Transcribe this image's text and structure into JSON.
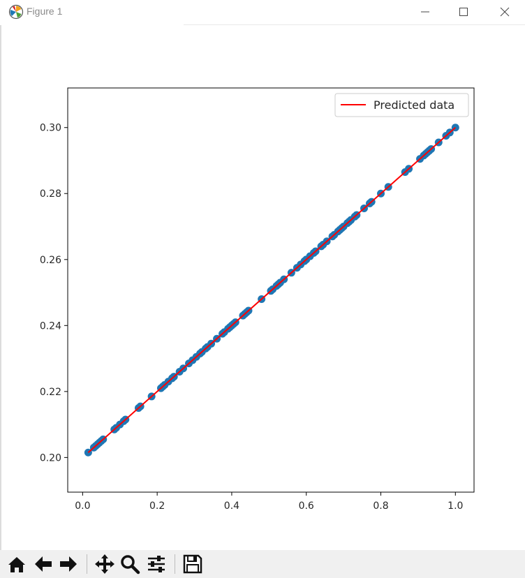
{
  "window": {
    "title": "Figure 1",
    "app_icon": "matplotlib-icon",
    "controls": [
      "minimize-icon",
      "maximize-icon",
      "close-icon"
    ]
  },
  "toolbar": {
    "buttons": [
      "home-icon",
      "back-arrow-icon",
      "forward-arrow-icon",
      "pan-icon",
      "zoom-icon",
      "subplots-config-icon",
      "save-icon"
    ]
  },
  "chart_data": {
    "type": "scatter",
    "title": "",
    "xlabel": "",
    "ylabel": "",
    "xlim": [
      -0.04,
      1.05
    ],
    "ylim": [
      0.1895,
      0.312
    ],
    "x_ticks": [
      0.0,
      0.2,
      0.4,
      0.6,
      0.8,
      1.0
    ],
    "x_tick_labels": [
      "0.0",
      "0.2",
      "0.4",
      "0.6",
      "0.8",
      "1.0"
    ],
    "y_ticks": [
      0.2,
      0.22,
      0.24,
      0.26,
      0.28,
      0.3
    ],
    "y_tick_labels": [
      "0.20",
      "0.22",
      "0.24",
      "0.26",
      "0.28",
      "0.30"
    ],
    "grid": false,
    "legend": {
      "position": "top-right",
      "entries": [
        "Predicted data"
      ]
    },
    "series": [
      {
        "kind": "scatter",
        "color": "#1f77b4",
        "x": [
          0.015,
          0.03,
          0.035,
          0.04,
          0.045,
          0.05,
          0.055,
          0.085,
          0.09,
          0.1,
          0.11,
          0.115,
          0.15,
          0.155,
          0.185,
          0.21,
          0.215,
          0.22,
          0.23,
          0.24,
          0.245,
          0.26,
          0.27,
          0.285,
          0.295,
          0.305,
          0.315,
          0.32,
          0.33,
          0.335,
          0.345,
          0.36,
          0.375,
          0.38,
          0.39,
          0.395,
          0.4,
          0.405,
          0.41,
          0.43,
          0.435,
          0.44,
          0.445,
          0.48,
          0.505,
          0.51,
          0.52,
          0.525,
          0.53,
          0.54,
          0.56,
          0.575,
          0.585,
          0.595,
          0.6,
          0.61,
          0.62,
          0.625,
          0.64,
          0.645,
          0.655,
          0.67,
          0.675,
          0.685,
          0.69,
          0.695,
          0.7,
          0.71,
          0.715,
          0.72,
          0.73,
          0.735,
          0.755,
          0.77,
          0.775,
          0.8,
          0.82,
          0.865,
          0.875,
          0.905,
          0.915,
          0.92,
          0.925,
          0.93,
          0.935,
          0.955,
          0.975,
          0.985,
          1.0
        ],
        "y": [
          0.2015,
          0.203,
          0.2035,
          0.204,
          0.2045,
          0.205,
          0.2055,
          0.2085,
          0.209,
          0.21,
          0.211,
          0.2115,
          0.215,
          0.2155,
          0.2185,
          0.221,
          0.2215,
          0.222,
          0.223,
          0.224,
          0.2245,
          0.226,
          0.227,
          0.2285,
          0.2295,
          0.2305,
          0.2315,
          0.232,
          0.233,
          0.2335,
          0.2345,
          0.236,
          0.2375,
          0.238,
          0.239,
          0.2395,
          0.24,
          0.2405,
          0.241,
          0.243,
          0.2435,
          0.244,
          0.2445,
          0.248,
          0.2505,
          0.251,
          0.252,
          0.2525,
          0.253,
          0.254,
          0.256,
          0.2575,
          0.2585,
          0.2595,
          0.26,
          0.261,
          0.262,
          0.2625,
          0.264,
          0.2645,
          0.2655,
          0.267,
          0.2675,
          0.2685,
          0.269,
          0.2695,
          0.27,
          0.271,
          0.2715,
          0.272,
          0.273,
          0.2735,
          0.2755,
          0.277,
          0.2775,
          0.28,
          0.282,
          0.2865,
          0.2875,
          0.2905,
          0.2915,
          0.292,
          0.2925,
          0.293,
          0.2935,
          0.2955,
          0.2975,
          0.2985,
          0.3
        ]
      },
      {
        "name": "Predicted data",
        "kind": "line",
        "color": "#ff0000",
        "x": [
          0.015,
          1.0
        ],
        "y": [
          0.2015,
          0.3
        ]
      }
    ]
  }
}
